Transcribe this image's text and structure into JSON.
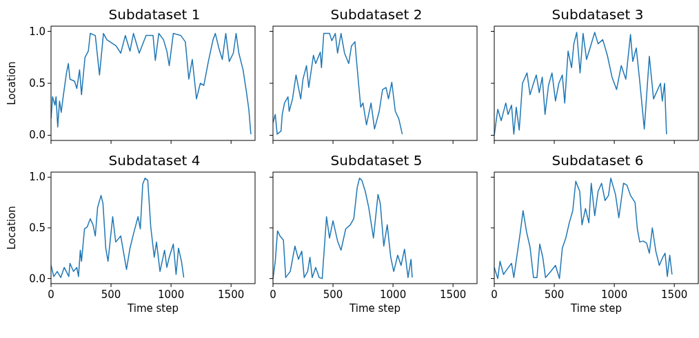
{
  "chart_data": [
    {
      "type": "line",
      "title": "Subdataset 1",
      "ylabel": "Location",
      "color": "#1f77b4",
      "xlim": [
        0,
        1700
      ],
      "ylim": [
        -0.05,
        1.05
      ],
      "xticks": [
        {
          "value": 0,
          "label": null
        },
        {
          "value": 500,
          "label": null
        },
        {
          "value": 1000,
          "label": null
        },
        {
          "value": 1500,
          "label": null
        }
      ],
      "yticks": [
        {
          "value": 0,
          "label": "0.0"
        },
        0.5,
        {
          "value": 1,
          "label": "1.0"
        }
      ],
      "tick_labels": "y",
      "x": [
        0,
        13,
        33,
        42,
        56,
        71,
        85,
        100,
        129,
        144,
        158,
        196,
        215,
        238,
        254,
        283,
        311,
        327,
        369,
        404,
        437,
        465,
        542,
        581,
        619,
        658,
        687,
        735,
        792,
        850,
        869,
        898,
        937,
        965,
        985,
        1019,
        1081,
        1119,
        1148,
        1177,
        1212,
        1244,
        1273,
        1311,
        1350,
        1369,
        1398,
        1427,
        1456,
        1485,
        1519,
        1542,
        1565,
        1600,
        1629,
        1648,
        1665
      ],
      "values": [
        0.16,
        0.37,
        0.29,
        0.37,
        0.08,
        0.33,
        0.22,
        0.36,
        0.6,
        0.69,
        0.54,
        0.52,
        0.45,
        0.63,
        0.39,
        0.75,
        0.81,
        0.98,
        0.96,
        0.58,
        0.98,
        0.92,
        0.86,
        0.79,
        0.96,
        0.81,
        0.98,
        0.79,
        0.96,
        0.96,
        0.72,
        0.98,
        0.92,
        0.81,
        0.67,
        0.98,
        0.96,
        0.9,
        0.54,
        0.73,
        0.35,
        0.5,
        0.48,
        0.71,
        0.92,
        0.98,
        0.84,
        0.73,
        0.98,
        0.71,
        0.79,
        0.98,
        0.79,
        0.63,
        0.41,
        0.25,
        0.01
      ]
    },
    {
      "type": "line",
      "title": "Subdataset 2",
      "color": "#1f77b4",
      "xlim": [
        0,
        1700
      ],
      "ylim": [
        -0.05,
        1.05
      ],
      "xticks": [
        {
          "value": 0,
          "label": null
        },
        {
          "value": 500,
          "label": null
        },
        {
          "value": 1000,
          "label": null
        },
        {
          "value": 1500,
          "label": null
        }
      ],
      "yticks": [
        {
          "value": 0,
          "label": null
        },
        {
          "value": 0.5,
          "label": null
        },
        {
          "value": 1,
          "label": null
        }
      ],
      "tick_labels": false,
      "x": [
        0,
        19,
        35,
        67,
        77,
        96,
        125,
        135,
        163,
        192,
        231,
        250,
        279,
        298,
        337,
        356,
        394,
        404,
        423,
        471,
        490,
        519,
        538,
        567,
        596,
        631,
        654,
        683,
        692,
        731,
        750,
        779,
        817,
        846,
        885,
        913,
        942,
        962,
        990,
        1019,
        1048,
        1077
      ],
      "values": [
        0.12,
        0.2,
        0.01,
        0.04,
        0.2,
        0.31,
        0.37,
        0.23,
        0.35,
        0.58,
        0.35,
        0.54,
        0.67,
        0.46,
        0.77,
        0.69,
        0.8,
        0.65,
        0.98,
        0.98,
        0.91,
        0.98,
        0.79,
        0.98,
        0.79,
        0.69,
        0.86,
        0.9,
        0.77,
        0.27,
        0.31,
        0.1,
        0.31,
        0.06,
        0.23,
        0.44,
        0.46,
        0.35,
        0.51,
        0.23,
        0.16,
        0.01
      ]
    },
    {
      "type": "line",
      "title": "Subdataset 3",
      "color": "#1f77b4",
      "xlim": [
        0,
        1700
      ],
      "ylim": [
        -0.05,
        1.05
      ],
      "xticks": [
        {
          "value": 0,
          "label": null
        },
        {
          "value": 500,
          "label": null
        },
        {
          "value": 1000,
          "label": null
        },
        {
          "value": 1500,
          "label": null
        }
      ],
      "yticks": [
        {
          "value": 0,
          "label": null
        },
        {
          "value": 0.5,
          "label": null
        },
        {
          "value": 1,
          "label": null
        }
      ],
      "tick_labels": false,
      "x": [
        0,
        29,
        58,
        96,
        115,
        144,
        163,
        183,
        208,
        235,
        273,
        298,
        327,
        350,
        375,
        400,
        423,
        452,
        481,
        510,
        538,
        567,
        587,
        615,
        644,
        663,
        687,
        715,
        740,
        769,
        798,
        837,
        865,
        904,
        942,
        981,
        1019,
        1058,
        1096,
        1135,
        1154,
        1183,
        1212,
        1250,
        1292,
        1327,
        1385,
        1400,
        1419,
        1435
      ],
      "values": [
        0,
        0.25,
        0.14,
        0.31,
        0.2,
        0.29,
        0.01,
        0.27,
        0.05,
        0.5,
        0.6,
        0.39,
        0.5,
        0.58,
        0.41,
        0.56,
        0.2,
        0.48,
        0.6,
        0.33,
        0.5,
        0.58,
        0.31,
        0.81,
        0.65,
        0.88,
        0.99,
        0.6,
        0.98,
        0.73,
        0.84,
        0.99,
        0.88,
        0.92,
        0.77,
        0.56,
        0.44,
        0.67,
        0.54,
        0.97,
        0.71,
        0.84,
        0.52,
        0.06,
        0.76,
        0.35,
        0.5,
        0.33,
        0.5,
        0.01
      ]
    },
    {
      "type": "line",
      "title": "Subdataset 4",
      "xlabel": "Time step",
      "ylabel": "Location",
      "color": "#1f77b4",
      "xlim": [
        0,
        1700
      ],
      "ylim": [
        -0.05,
        1.05
      ],
      "xticks": [
        0,
        500,
        1000,
        1500
      ],
      "yticks": [
        {
          "value": 0,
          "label": "0.0"
        },
        0.5,
        {
          "value": 1,
          "label": "1.0"
        }
      ],
      "x": [
        0,
        23,
        52,
        81,
        110,
        148,
        158,
        187,
        215,
        229,
        244,
        254,
        279,
        302,
        327,
        350,
        369,
        388,
        417,
        433,
        456,
        475,
        514,
        539,
        581,
        629,
        658,
        687,
        725,
        744,
        764,
        783,
        806,
        831,
        860,
        879,
        908,
        946,
        965,
        985,
        1019,
        1042,
        1062,
        1087,
        1106
      ],
      "values": [
        0.13,
        0.02,
        0.07,
        0.01,
        0.11,
        0.02,
        0.15,
        0.07,
        0.11,
        0.02,
        0.28,
        0.17,
        0.49,
        0.51,
        0.59,
        0.53,
        0.42,
        0.7,
        0.82,
        0.74,
        0.3,
        0.17,
        0.61,
        0.36,
        0.42,
        0.09,
        0.3,
        0.44,
        0.61,
        0.49,
        0.93,
        0.99,
        0.97,
        0.51,
        0.21,
        0.36,
        0.07,
        0.28,
        0.11,
        0.21,
        0.34,
        0.04,
        0.3,
        0.17,
        0.01
      ]
    },
    {
      "type": "line",
      "title": "Subdataset 5",
      "xlabel": "Time step",
      "color": "#1f77b4",
      "xlim": [
        0,
        1700
      ],
      "ylim": [
        -0.05,
        1.05
      ],
      "xticks": [
        0,
        500,
        1000,
        1500
      ],
      "yticks": [
        {
          "value": 0,
          "label": null
        },
        {
          "value": 0.5,
          "label": null
        },
        {
          "value": 1,
          "label": null
        }
      ],
      "tick_labels": "x",
      "x": [
        0,
        19,
        38,
        58,
        87,
        106,
        144,
        183,
        212,
        240,
        260,
        289,
        308,
        327,
        356,
        385,
        410,
        446,
        471,
        500,
        538,
        567,
        606,
        644,
        673,
        702,
        721,
        740,
        769,
        798,
        837,
        875,
        894,
        923,
        952,
        981,
        1006,
        1039,
        1067,
        1096,
        1125,
        1150,
        1160
      ],
      "values": [
        0,
        0.17,
        0.47,
        0.42,
        0.38,
        0.01,
        0.07,
        0.32,
        0.19,
        0.27,
        0.01,
        0.07,
        0.21,
        0.01,
        0.11,
        0.01,
        0,
        0.61,
        0.4,
        0.57,
        0.37,
        0.28,
        0.49,
        0.53,
        0.59,
        0.9,
        0.99,
        0.97,
        0.86,
        0.7,
        0.4,
        0.83,
        0.74,
        0.32,
        0.53,
        0.21,
        0.07,
        0.23,
        0.13,
        0.29,
        0.01,
        0.19,
        0.01
      ]
    },
    {
      "type": "line",
      "title": "Subdataset 6",
      "xlabel": "Time step",
      "color": "#1f77b4",
      "xlim": [
        0,
        1700
      ],
      "ylim": [
        -0.05,
        1.05
      ],
      "xticks": [
        0,
        500,
        1000,
        1500
      ],
      "yticks": [
        {
          "value": 0,
          "label": null
        },
        {
          "value": 0.5,
          "label": null
        },
        {
          "value": 1,
          "label": null
        }
      ],
      "tick_labels": "x",
      "x": [
        0,
        29,
        48,
        77,
        106,
        144,
        163,
        192,
        215,
        240,
        269,
        298,
        327,
        356,
        379,
        404,
        427,
        471,
        510,
        543,
        567,
        596,
        625,
        654,
        679,
        712,
        731,
        760,
        788,
        808,
        837,
        865,
        894,
        923,
        952,
        971,
        1010,
        1038,
        1077,
        1106,
        1135,
        1173,
        1192,
        1212,
        1240,
        1269,
        1292,
        1317,
        1346,
        1375,
        1404,
        1423,
        1442,
        1462,
        1481
      ],
      "values": [
        0.11,
        0,
        0.17,
        0.04,
        0.09,
        0.15,
        0.01,
        0.25,
        0.44,
        0.67,
        0.46,
        0.31,
        0.01,
        0.01,
        0.34,
        0.21,
        0.01,
        0.07,
        0.13,
        0,
        0.3,
        0.4,
        0.55,
        0.67,
        0.96,
        0.86,
        0.53,
        0.69,
        0.55,
        0.94,
        0.62,
        0.86,
        0.94,
        0.77,
        0.82,
        0.99,
        0.83,
        0.6,
        0.94,
        0.92,
        0.82,
        0.75,
        0.49,
        0.36,
        0.37,
        0.35,
        0.25,
        0.5,
        0.27,
        0.13,
        0.21,
        0.25,
        0.02,
        0.23,
        0.04
      ]
    }
  ]
}
